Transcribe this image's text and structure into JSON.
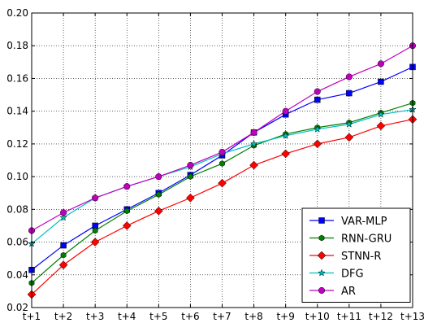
{
  "chart_data": {
    "type": "line",
    "title": "",
    "xlabel": "",
    "ylabel": "",
    "categories": [
      "t+1",
      "t+2",
      "t+3",
      "t+4",
      "t+5",
      "t+6",
      "t+7",
      "t+8",
      "t+9",
      "t+10",
      "t+11",
      "t+12",
      "t+13"
    ],
    "ylim": [
      0.02,
      0.2
    ],
    "yticks": [
      "0.02",
      "0.04",
      "0.06",
      "0.08",
      "0.10",
      "0.12",
      "0.14",
      "0.16",
      "0.18",
      "0.20"
    ],
    "grid": true,
    "legend_position": "lower-right",
    "series": [
      {
        "name": "VAR-MLP",
        "color": "#0000ff",
        "marker": "square",
        "values": [
          0.043,
          0.058,
          0.07,
          0.08,
          0.09,
          0.101,
          0.113,
          0.127,
          0.138,
          0.147,
          0.151,
          0.158,
          0.167
        ]
      },
      {
        "name": "RNN-GRU",
        "color": "#007f00",
        "marker": "hexagon",
        "values": [
          0.035,
          0.052,
          0.067,
          0.079,
          0.089,
          0.1,
          0.108,
          0.119,
          0.126,
          0.13,
          0.133,
          0.139,
          0.145
        ]
      },
      {
        "name": "STNN-R",
        "color": "#ff0000",
        "marker": "diamond",
        "values": [
          0.028,
          0.046,
          0.06,
          0.07,
          0.079,
          0.087,
          0.096,
          0.107,
          0.114,
          0.12,
          0.124,
          0.131,
          0.135
        ]
      },
      {
        "name": "DFG",
        "color": "#00bfbf",
        "marker": "star",
        "values": [
          0.059,
          0.075,
          0.087,
          0.094,
          0.1,
          0.106,
          0.114,
          0.12,
          0.125,
          0.129,
          0.132,
          0.138,
          0.141
        ]
      },
      {
        "name": "AR",
        "color": "#bf00bf",
        "marker": "circle",
        "values": [
          0.067,
          0.078,
          0.087,
          0.094,
          0.1,
          0.107,
          0.115,
          0.127,
          0.14,
          0.152,
          0.161,
          0.169,
          0.18
        ]
      }
    ]
  }
}
